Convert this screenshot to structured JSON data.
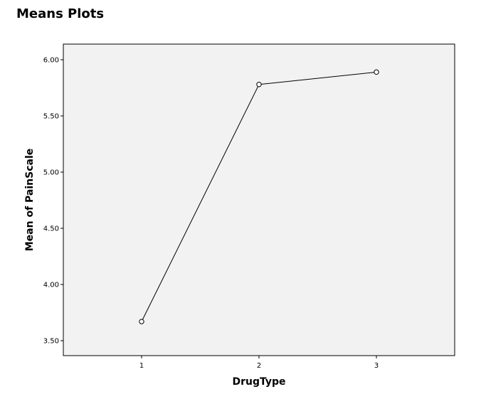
{
  "page": {
    "title": "Means Plots"
  },
  "colors": {
    "plot_background": "#f2f2f2",
    "line": "#000000",
    "marker_fill": "#ffffff"
  },
  "chart_data": {
    "type": "line",
    "title": "",
    "xlabel": "DrugType",
    "ylabel": "Mean of PainScale",
    "categories": [
      "1",
      "2",
      "3"
    ],
    "values": [
      3.67,
      5.78,
      5.89
    ],
    "ylim": [
      3.45,
      6.17
    ],
    "yticks": [
      "3.50",
      "4.00",
      "4.50",
      "5.00",
      "5.50",
      "6.00"
    ],
    "grid": false,
    "legend": "none",
    "marker": "open-circle"
  }
}
